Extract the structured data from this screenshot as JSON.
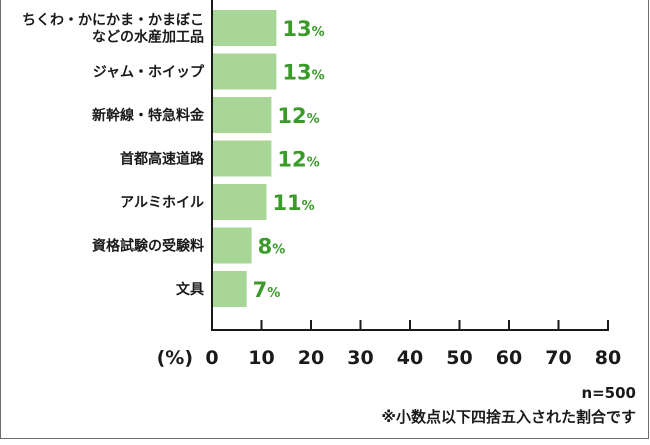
{
  "chart_data": {
    "type": "bar",
    "orientation": "horizontal",
    "categories": [
      "ちくわ・かにかま・かまぼこ\nなどの水産加工品",
      "ジャム・ホイップ",
      "新幹線・特急料金",
      "首都高速道路",
      "アルミホイル",
      "資格試験の受験料",
      "文具"
    ],
    "values": [
      13,
      13,
      12,
      12,
      11,
      8,
      7
    ],
    "value_suffix": "%",
    "xlim": [
      0,
      80
    ],
    "xticks": [
      0,
      10,
      20,
      30,
      40,
      50,
      60,
      70,
      80
    ],
    "xlabel": "(%)",
    "grid": false,
    "colors": {
      "bar": "#a8d696",
      "value_text": "#3a9a2a",
      "axis": "#1a1a1a"
    }
  },
  "notes": {
    "sample": "n=500",
    "rounding": "※小数点以下四捨五入された割合です"
  }
}
